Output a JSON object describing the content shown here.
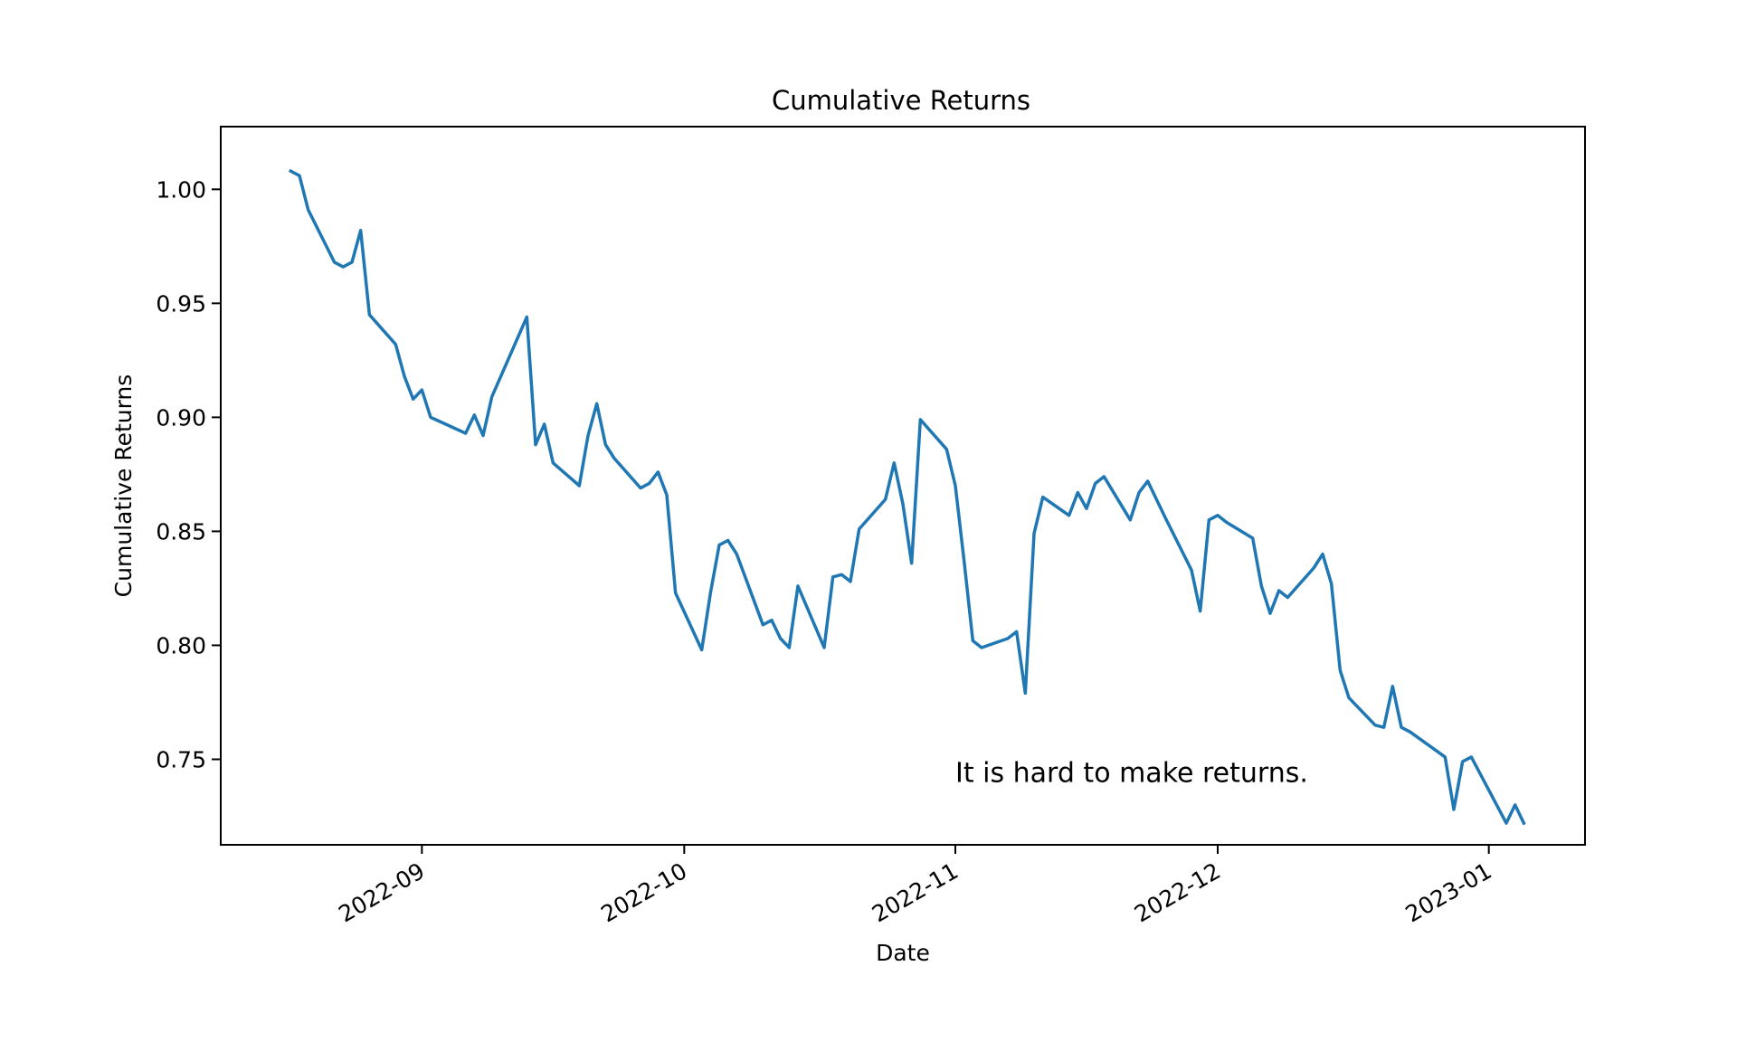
{
  "chart_data": {
    "type": "line",
    "title": "Cumulative Returns",
    "xlabel": "Date",
    "ylabel": "Cumulative Returns",
    "xlim": [
      "2022-08-09",
      "2023-01-12"
    ],
    "ylim": [
      0.7125,
      1.0275
    ],
    "x_ticks": [
      "2022-09-01",
      "2022-10-01",
      "2022-11-01",
      "2022-12-01",
      "2023-01-01"
    ],
    "x_tick_labels": [
      "2022-09",
      "2022-10",
      "2022-11",
      "2022-12",
      "2023-01"
    ],
    "y_ticks": [
      0.75,
      0.8,
      0.85,
      0.9,
      0.95,
      1.0
    ],
    "y_tick_labels": [
      "0.75",
      "0.80",
      "0.85",
      "0.90",
      "0.95",
      "1.00"
    ],
    "grid": false,
    "line_color": "#1f77b4",
    "annotation": {
      "text": "It is hard to make returns.",
      "x": "2022-11-01",
      "y": 0.74
    },
    "series": [
      {
        "x": [
          "2022-08-17",
          "2022-08-18",
          "2022-08-19",
          "2022-08-22",
          "2022-08-23",
          "2022-08-24",
          "2022-08-25",
          "2022-08-26",
          "2022-08-29",
          "2022-08-30",
          "2022-08-31",
          "2022-09-01",
          "2022-09-02",
          "2022-09-06",
          "2022-09-07",
          "2022-09-08",
          "2022-09-09",
          "2022-09-13",
          "2022-09-14",
          "2022-09-15",
          "2022-09-16",
          "2022-09-19",
          "2022-09-20",
          "2022-09-21",
          "2022-09-22",
          "2022-09-23",
          "2022-09-26",
          "2022-09-27",
          "2022-09-28",
          "2022-09-29",
          "2022-09-30",
          "2022-10-03",
          "2022-10-04",
          "2022-10-05",
          "2022-10-06",
          "2022-10-07",
          "2022-10-10",
          "2022-10-11",
          "2022-10-12",
          "2022-10-13",
          "2022-10-14",
          "2022-10-17",
          "2022-10-18",
          "2022-10-19",
          "2022-10-20",
          "2022-10-21",
          "2022-10-24",
          "2022-10-25",
          "2022-10-26",
          "2022-10-27",
          "2022-10-28",
          "2022-10-31",
          "2022-11-01",
          "2022-11-02",
          "2022-11-03",
          "2022-11-04",
          "2022-11-07",
          "2022-11-08",
          "2022-11-09",
          "2022-11-10",
          "2022-11-11",
          "2022-11-14",
          "2022-11-15",
          "2022-11-16",
          "2022-11-17",
          "2022-11-18",
          "2022-11-21",
          "2022-11-22",
          "2022-11-23",
          "2022-11-25",
          "2022-11-28",
          "2022-11-29",
          "2022-11-30",
          "2022-12-01",
          "2022-12-02",
          "2022-12-05",
          "2022-12-06",
          "2022-12-07",
          "2022-12-08",
          "2022-12-09",
          "2022-12-12",
          "2022-12-13",
          "2022-12-14",
          "2022-12-15",
          "2022-12-16",
          "2022-12-19",
          "2022-12-20",
          "2022-12-21",
          "2022-12-22",
          "2022-12-23",
          "2022-12-27",
          "2022-12-28",
          "2022-12-29",
          "2022-12-30",
          "2023-01-03",
          "2023-01-04",
          "2023-01-05"
        ],
        "values": [
          1.008,
          1.006,
          0.991,
          0.968,
          0.966,
          0.968,
          0.982,
          0.945,
          0.932,
          0.918,
          0.908,
          0.912,
          0.9,
          0.893,
          0.901,
          0.892,
          0.909,
          0.944,
          0.888,
          0.897,
          0.88,
          0.87,
          0.892,
          0.906,
          0.888,
          0.882,
          0.869,
          0.871,
          0.876,
          0.866,
          0.823,
          0.798,
          0.823,
          0.844,
          0.846,
          0.84,
          0.809,
          0.811,
          0.803,
          0.799,
          0.826,
          0.799,
          0.83,
          0.831,
          0.828,
          0.851,
          0.864,
          0.88,
          0.862,
          0.836,
          0.899,
          0.886,
          0.87,
          0.837,
          0.802,
          0.799,
          0.803,
          0.806,
          0.779,
          0.849,
          0.865,
          0.857,
          0.867,
          0.86,
          0.871,
          0.874,
          0.855,
          0.867,
          0.872,
          0.856,
          0.833,
          0.815,
          0.855,
          0.857,
          0.854,
          0.847,
          0.826,
          0.814,
          0.824,
          0.821,
          0.834,
          0.84,
          0.827,
          0.789,
          0.777,
          0.765,
          0.764,
          0.782,
          0.764,
          0.762,
          0.751,
          0.728,
          0.749,
          0.751,
          0.722,
          0.73,
          0.722
        ]
      }
    ]
  }
}
